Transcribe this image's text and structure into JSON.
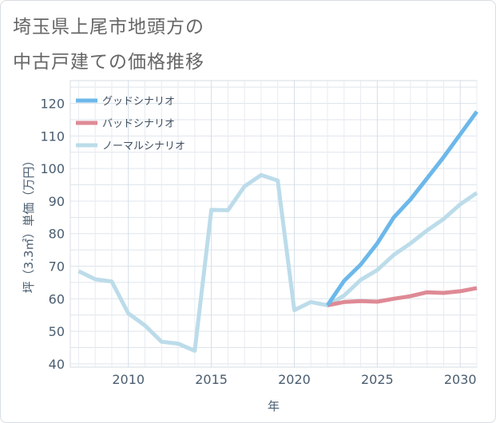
{
  "title_lines": [
    "埼玉県上尾市地頭方の",
    "中古戸建ての価格推移"
  ],
  "chart_data": {
    "type": "line",
    "xlabel": "年",
    "ylabel": "坪（3.3㎡）単価（万円）",
    "xlim": [
      2006.5,
      2031
    ],
    "ylim": [
      39,
      127
    ],
    "x_ticks": [
      2010,
      2015,
      2020,
      2025,
      2030
    ],
    "y_ticks": [
      40,
      50,
      60,
      70,
      80,
      90,
      100,
      110,
      120
    ],
    "grid": true,
    "legend_position": "top-left",
    "series": [
      {
        "name": "グッドシナリオ",
        "color": "#6cb8ea",
        "points": [
          [
            2022,
            58
          ],
          [
            2023,
            65.5
          ],
          [
            2024,
            70.5
          ],
          [
            2025,
            77
          ],
          [
            2026,
            85
          ],
          [
            2027,
            90.5
          ],
          [
            2028,
            97
          ],
          [
            2029,
            103.5
          ],
          [
            2030,
            110.5
          ],
          [
            2031,
            117.5
          ]
        ]
      },
      {
        "name": "バッドシナリオ",
        "color": "#de8a95",
        "points": [
          [
            2022,
            58
          ],
          [
            2023,
            59
          ],
          [
            2024,
            59.3
          ],
          [
            2025,
            59.1
          ],
          [
            2026,
            60
          ],
          [
            2027,
            60.8
          ],
          [
            2028,
            62
          ],
          [
            2029,
            61.8
          ],
          [
            2030,
            62.3
          ],
          [
            2031,
            63.3
          ]
        ]
      },
      {
        "name": "ノーマルシナリオ",
        "color": "#bcdcea",
        "points": [
          [
            2007,
            68.5
          ],
          [
            2008,
            66
          ],
          [
            2009,
            65.3
          ],
          [
            2010,
            55.5
          ],
          [
            2011,
            51.8
          ],
          [
            2012,
            46.8
          ],
          [
            2013,
            46.2
          ],
          [
            2014,
            44
          ],
          [
            2015,
            87.3
          ],
          [
            2016,
            87.2
          ],
          [
            2017,
            94.5
          ],
          [
            2018,
            98
          ],
          [
            2019,
            96.3
          ],
          [
            2020,
            56.5
          ],
          [
            2021,
            59
          ],
          [
            2022,
            58
          ],
          [
            2023,
            61
          ],
          [
            2024,
            65.8
          ],
          [
            2025,
            68.8
          ],
          [
            2026,
            73.5
          ],
          [
            2027,
            77
          ],
          [
            2028,
            81
          ],
          [
            2029,
            84.5
          ],
          [
            2030,
            89
          ],
          [
            2031,
            92.5
          ]
        ]
      }
    ]
  }
}
